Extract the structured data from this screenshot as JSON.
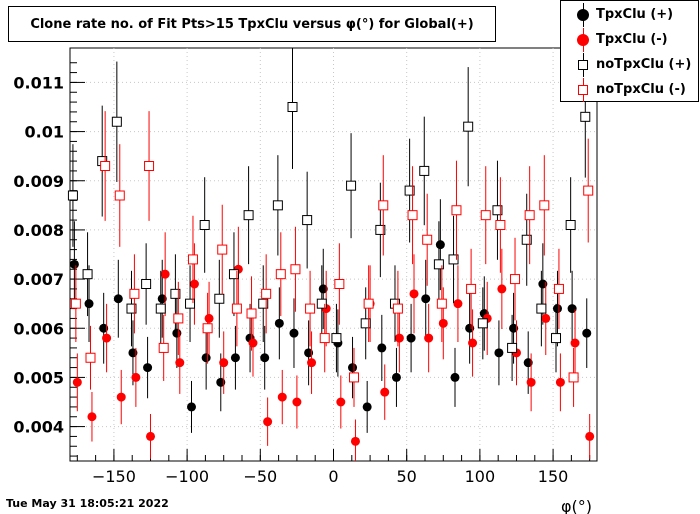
{
  "title": "Clone rate no. of Fit Pts>15 TpxClu versus φ(°) for Global(+)",
  "timestamp": "Tue May 31 18:05:21 2022",
  "chart_data": {
    "type": "scatter",
    "title": "Clone rate no. of Fit Pts>15 TpxClu versus φ(°) for Global(+)",
    "xlabel": "φ(°)",
    "ylabel": "",
    "xlim": [
      -180,
      180
    ],
    "ylim": [
      0.0033,
      0.0117
    ],
    "xticks": [
      -150,
      -100,
      -50,
      0,
      50,
      100,
      150
    ],
    "xtick_labels": [
      "−150",
      "−100",
      "−50",
      "0",
      "50",
      "100",
      "150"
    ],
    "yticks": [
      0.004,
      0.005,
      0.006,
      0.007,
      0.008,
      0.009,
      0.01,
      0.011
    ],
    "ytick_labels": [
      "0.004",
      "0.005",
      "0.006",
      "0.007",
      "0.008",
      "0.009",
      "0.01",
      "0.011"
    ],
    "legend_position": "top-right",
    "series": [
      {
        "name": "TpxClu (+)",
        "color": "#000000",
        "marker": "filled-circle",
        "x": [
          -177,
          -167,
          -157,
          -147,
          -137,
          -127,
          -117,
          -107,
          -97,
          -87,
          -77,
          -67,
          -57,
          -47,
          -37,
          -27,
          -17,
          -7,
          3,
          13,
          23,
          33,
          43,
          53,
          63,
          73,
          83,
          93,
          103,
          113,
          123,
          133,
          143,
          153,
          163,
          173
        ],
        "y": [
          0.0073,
          0.0065,
          0.006,
          0.0066,
          0.0055,
          0.0052,
          0.0066,
          0.0059,
          0.0044,
          0.0054,
          0.0049,
          0.0054,
          0.0058,
          0.0054,
          0.0061,
          0.0059,
          0.0055,
          0.0068,
          0.0057,
          0.0052,
          0.0044,
          0.0056,
          0.005,
          0.0058,
          0.0066,
          0.0077,
          0.005,
          0.006,
          0.0063,
          0.0055,
          0.006,
          0.0053,
          0.0069,
          0.0064,
          0.0064,
          0.0059
        ]
      },
      {
        "name": "TpxClu (-)",
        "color": "#ff0000",
        "marker": "filled-circle",
        "x": [
          -175,
          -165,
          -155,
          -145,
          -135,
          -125,
          -115,
          -105,
          -95,
          -85,
          -75,
          -65,
          -55,
          -45,
          -35,
          -25,
          -15,
          -5,
          5,
          15,
          25,
          35,
          45,
          55,
          65,
          75,
          85,
          95,
          105,
          115,
          125,
          135,
          145,
          155,
          165,
          175
        ],
        "y": [
          0.0049,
          0.0042,
          0.0058,
          0.0046,
          0.005,
          0.0038,
          0.0071,
          0.0053,
          0.0069,
          0.0062,
          0.0053,
          0.0072,
          0.0057,
          0.0041,
          0.0046,
          0.0045,
          0.0053,
          0.0064,
          0.0045,
          0.0037,
          0.0065,
          0.0047,
          0.0058,
          0.0067,
          0.0058,
          0.0061,
          0.0065,
          0.0057,
          0.0062,
          0.0068,
          0.0055,
          0.0049,
          0.0062,
          0.0049,
          0.0057,
          0.0038
        ]
      },
      {
        "name": "noTpxClu (+)",
        "color": "#000000",
        "marker": "open-square",
        "x": [
          -178,
          -168,
          -158,
          -148,
          -138,
          -128,
          -118,
          -108,
          -98,
          -88,
          -78,
          -68,
          -58,
          -48,
          -38,
          -28,
          -18,
          -8,
          2,
          12,
          22,
          32,
          42,
          52,
          62,
          72,
          82,
          92,
          102,
          112,
          122,
          132,
          142,
          152,
          162,
          172
        ],
        "y": [
          0.0087,
          0.0071,
          0.0094,
          0.0102,
          0.0064,
          0.0069,
          0.0064,
          0.0067,
          0.0065,
          0.0081,
          0.0066,
          0.0071,
          0.0083,
          0.0065,
          0.0085,
          0.0105,
          0.0082,
          0.0065,
          0.0058,
          0.0089,
          0.0061,
          0.008,
          0.0065,
          0.0088,
          0.0092,
          0.0073,
          0.0074,
          0.0101,
          0.0061,
          0.0084,
          0.0056,
          0.0078,
          0.0064,
          0.0058,
          0.0081,
          0.0103
        ]
      },
      {
        "name": "noTpxClu (-)",
        "color": "#ff0000",
        "marker": "open-square",
        "x": [
          -176,
          -166,
          -156,
          -146,
          -136,
          -126,
          -116,
          -106,
          -96,
          -86,
          -76,
          -66,
          -56,
          -46,
          -36,
          -26,
          -16,
          -6,
          4,
          14,
          24,
          34,
          44,
          54,
          64,
          74,
          84,
          94,
          104,
          114,
          124,
          134,
          144,
          154,
          164,
          174
        ],
        "y": [
          0.0065,
          0.0054,
          0.0093,
          0.0087,
          0.0067,
          0.0093,
          0.0056,
          0.0062,
          0.0074,
          0.006,
          0.0076,
          0.0064,
          0.0063,
          0.0067,
          0.0071,
          0.0072,
          0.0064,
          0.0058,
          0.0069,
          0.005,
          0.0065,
          0.0085,
          0.0064,
          0.0083,
          0.0078,
          0.0065,
          0.0084,
          0.0068,
          0.0083,
          0.0081,
          0.007,
          0.0083,
          0.0085,
          0.0068,
          0.005,
          0.0088
        ]
      }
    ]
  }
}
